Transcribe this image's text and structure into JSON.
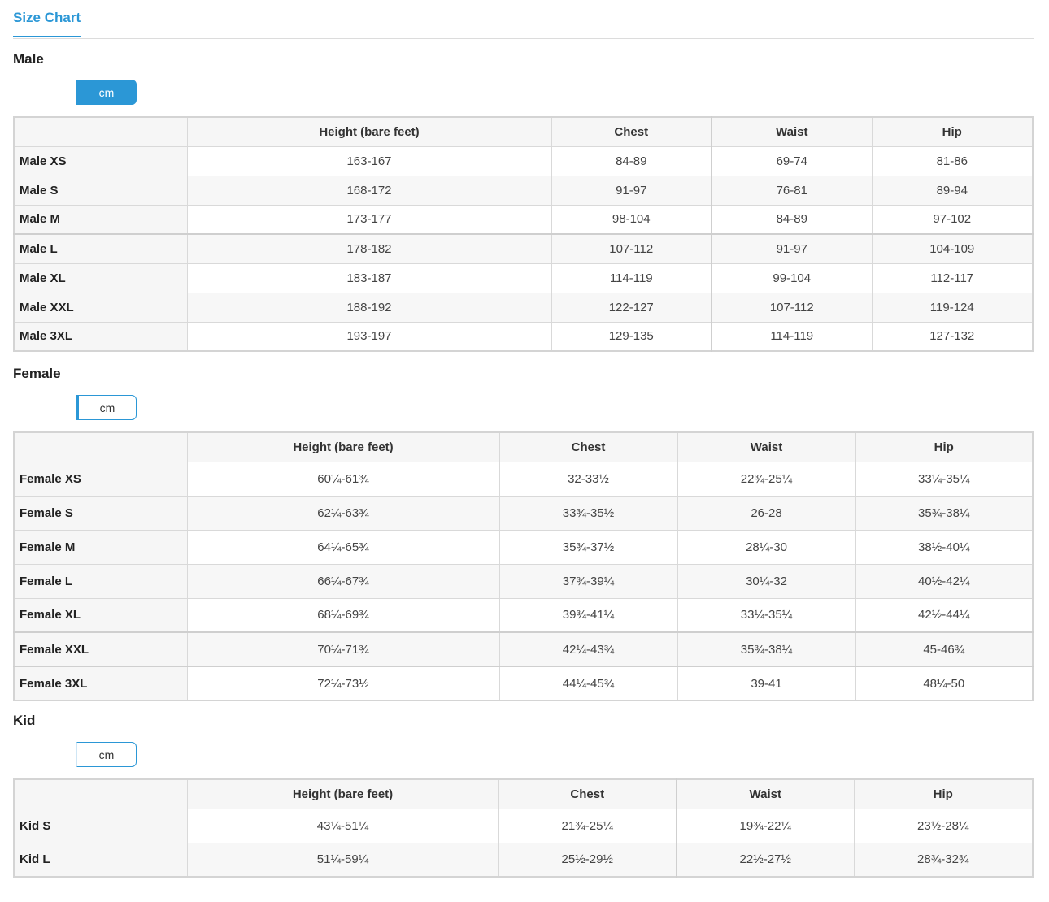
{
  "page_tab": "Size Chart",
  "accent_color": "#2b97d6",
  "sections": [
    {
      "title": "Male",
      "unit": "cm",
      "headers": [
        "",
        "Height  (bare feet)",
        "Chest",
        "Waist",
        "Hip"
      ],
      "rows": [
        {
          "size": "Male XS",
          "values": [
            "163-167",
            "84-89",
            "69-74",
            "81-86"
          ]
        },
        {
          "size": "Male S",
          "values": [
            "168-172",
            "91-97",
            "76-81",
            "89-94"
          ]
        },
        {
          "size": "Male M",
          "values": [
            "173-177",
            "98-104",
            "84-89",
            "97-102"
          ]
        },
        {
          "size": "Male L",
          "values": [
            "178-182",
            "107-112",
            "91-97",
            "104-109"
          ]
        },
        {
          "size": "Male XL",
          "values": [
            "183-187",
            "114-119",
            "99-104",
            "112-117"
          ]
        },
        {
          "size": "Male XXL",
          "values": [
            "188-192",
            "122-127",
            "107-112",
            "119-124"
          ]
        },
        {
          "size": "Male 3XL",
          "values": [
            "193-197",
            "129-135",
            "114-119",
            "127-132"
          ]
        }
      ]
    },
    {
      "title": "Female",
      "unit": "cm",
      "headers": [
        "",
        "Height  (bare feet)",
        "Chest",
        "Waist",
        "Hip"
      ],
      "rows": [
        {
          "size": "Female XS",
          "values": [
            "60¼-61¾",
            "32-33½",
            "22¾-25¼",
            "33¼-35¼"
          ]
        },
        {
          "size": "Female S",
          "values": [
            "62¼-63¾",
            "33¾-35½",
            "26-28",
            "35¾-38¼"
          ]
        },
        {
          "size": "Female M",
          "values": [
            "64¼-65¾",
            "35¾-37½",
            "28¼-30",
            "38½-40¼"
          ]
        },
        {
          "size": "Female L",
          "values": [
            "66¼-67¾",
            "37¾-39¼",
            "30¼-32",
            "40½-42¼"
          ]
        },
        {
          "size": "Female XL",
          "values": [
            "68¼-69¾",
            "39¾-41¼",
            "33¼-35¼",
            "42½-44¼"
          ]
        },
        {
          "size": "Female XXL",
          "values": [
            "70¼-71¾",
            "42¼-43¾",
            "35¾-38¼",
            "45-46¾"
          ]
        },
        {
          "size": "Female 3XL",
          "values": [
            "72¼-73½",
            "44¼-45¾",
            "39-41",
            "48¼-50"
          ]
        }
      ]
    },
    {
      "title": "Kid",
      "unit": "cm",
      "headers": [
        "",
        "Height  (bare feet)",
        "Chest",
        "Waist",
        "Hip"
      ],
      "rows": [
        {
          "size": "Kid S",
          "values": [
            "43¼-51¼",
            "21¾-25¼",
            "19¾-22¼",
            "23½-28¼"
          ]
        },
        {
          "size": "Kid L",
          "values": [
            "51¼-59¼",
            "25½-29½",
            "22½-27½",
            "28¾-32¾"
          ]
        }
      ]
    }
  ]
}
